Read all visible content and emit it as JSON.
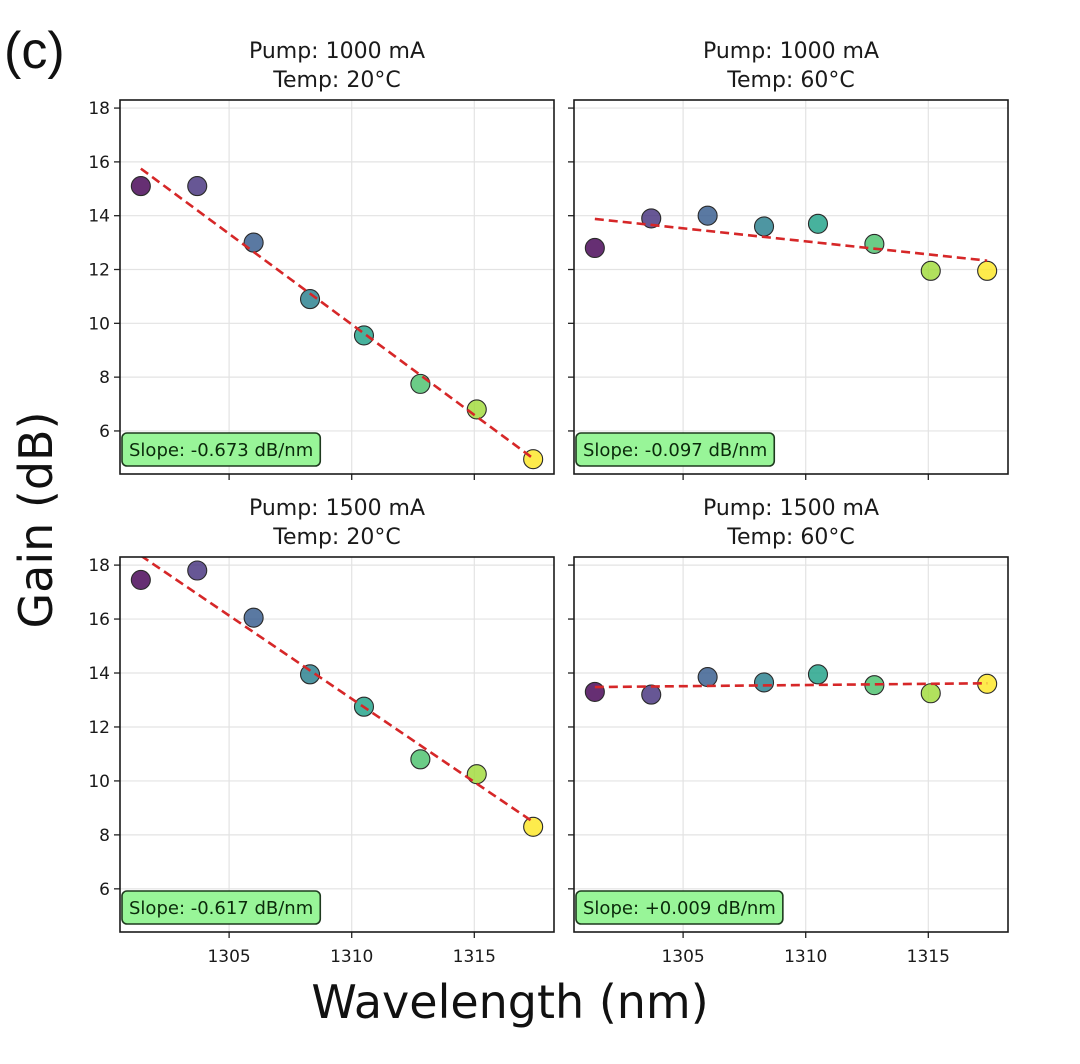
{
  "figure": {
    "panel_letter": "(c)",
    "ylabel": "Gain (dB)",
    "xlabel": "Wavelength (nm)"
  },
  "colors": {
    "fit_line": "#d62728",
    "slope_box_fill": "#98f598",
    "slope_box_edge": "#1e3a1e",
    "grid": "#e3e3e3",
    "viridis": [
      "#440154",
      "#46327e",
      "#365c8d",
      "#277f8e",
      "#1fa187",
      "#4ac16d",
      "#a0da39",
      "#fde725"
    ]
  },
  "chart_data": [
    {
      "type": "scatter",
      "title": "Pump: 1000 mA\nTemp: 20°C",
      "title_lines": [
        "Pump: 1000 mA",
        "Temp: 20°C"
      ],
      "xlabel": "Wavelength (nm)",
      "ylabel": "Gain (dB)",
      "xlim": [
        1300.55,
        1318.25
      ],
      "ylim": [
        4.4,
        18.3
      ],
      "xticks": [
        1305,
        1310,
        1315
      ],
      "yticks": [
        6,
        8,
        10,
        12,
        14,
        16,
        18
      ],
      "show_xtick_labels": false,
      "show_ytick_labels": true,
      "grid": true,
      "x": [
        1301.4,
        1303.7,
        1306.0,
        1308.3,
        1310.5,
        1312.8,
        1315.1,
        1317.4
      ],
      "y": [
        15.1,
        15.1,
        13.0,
        10.9,
        9.55,
        7.75,
        6.8,
        4.95
      ],
      "fit": {
        "x": [
          1301.4,
          1317.4
        ],
        "y": [
          15.75,
          4.98
        ]
      },
      "annotation": "Slope: -0.673 dB/nm"
    },
    {
      "type": "scatter",
      "title": "Pump: 1000 mA\nTemp: 60°C",
      "title_lines": [
        "Pump: 1000 mA",
        "Temp: 60°C"
      ],
      "xlabel": "Wavelength (nm)",
      "ylabel": "Gain (dB)",
      "xlim": [
        1300.55,
        1318.25
      ],
      "ylim": [
        4.4,
        18.3
      ],
      "xticks": [
        1305,
        1310,
        1315
      ],
      "yticks": [
        6,
        8,
        10,
        12,
        14,
        16,
        18
      ],
      "show_xtick_labels": false,
      "show_ytick_labels": false,
      "grid": true,
      "x": [
        1301.4,
        1303.7,
        1306.0,
        1308.3,
        1310.5,
        1312.8,
        1315.1,
        1317.4
      ],
      "y": [
        12.8,
        13.9,
        14.0,
        13.6,
        13.7,
        12.95,
        11.95,
        11.95
      ],
      "fit": {
        "x": [
          1301.4,
          1317.4
        ],
        "y": [
          13.88,
          12.33
        ]
      },
      "annotation": "Slope: -0.097 dB/nm"
    },
    {
      "type": "scatter",
      "title": "Pump: 1500 mA\nTemp: 20°C",
      "title_lines": [
        "Pump: 1500 mA",
        "Temp: 20°C"
      ],
      "xlabel": "Wavelength (nm)",
      "ylabel": "Gain (dB)",
      "xlim": [
        1300.55,
        1318.25
      ],
      "ylim": [
        4.4,
        18.3
      ],
      "xticks": [
        1305,
        1310,
        1315
      ],
      "yticks": [
        6,
        8,
        10,
        12,
        14,
        16,
        18
      ],
      "show_xtick_labels": true,
      "show_ytick_labels": true,
      "grid": true,
      "x": [
        1301.4,
        1303.7,
        1306.0,
        1308.3,
        1310.5,
        1312.8,
        1315.1,
        1317.4
      ],
      "y": [
        17.45,
        17.8,
        16.05,
        13.95,
        12.75,
        10.8,
        10.25,
        8.3
      ],
      "fit": {
        "x": [
          1301.4,
          1317.4
        ],
        "y": [
          18.35,
          8.48
        ]
      },
      "annotation": "Slope: -0.617 dB/nm"
    },
    {
      "type": "scatter",
      "title": "Pump: 1500 mA\nTemp: 60°C",
      "title_lines": [
        "Pump: 1500 mA",
        "Temp: 60°C"
      ],
      "xlabel": "Wavelength (nm)",
      "ylabel": "Gain (dB)",
      "xlim": [
        1300.55,
        1318.25
      ],
      "ylim": [
        4.4,
        18.3
      ],
      "xticks": [
        1305,
        1310,
        1315
      ],
      "yticks": [
        6,
        8,
        10,
        12,
        14,
        16,
        18
      ],
      "show_xtick_labels": true,
      "show_ytick_labels": false,
      "grid": true,
      "x": [
        1301.4,
        1303.7,
        1306.0,
        1308.3,
        1310.5,
        1312.8,
        1315.1,
        1317.4
      ],
      "y": [
        13.3,
        13.2,
        13.85,
        13.65,
        13.95,
        13.55,
        13.25,
        13.6
      ],
      "fit": {
        "x": [
          1301.4,
          1317.4
        ],
        "y": [
          13.48,
          13.62
        ]
      },
      "annotation": "Slope: +0.009 dB/nm"
    }
  ]
}
